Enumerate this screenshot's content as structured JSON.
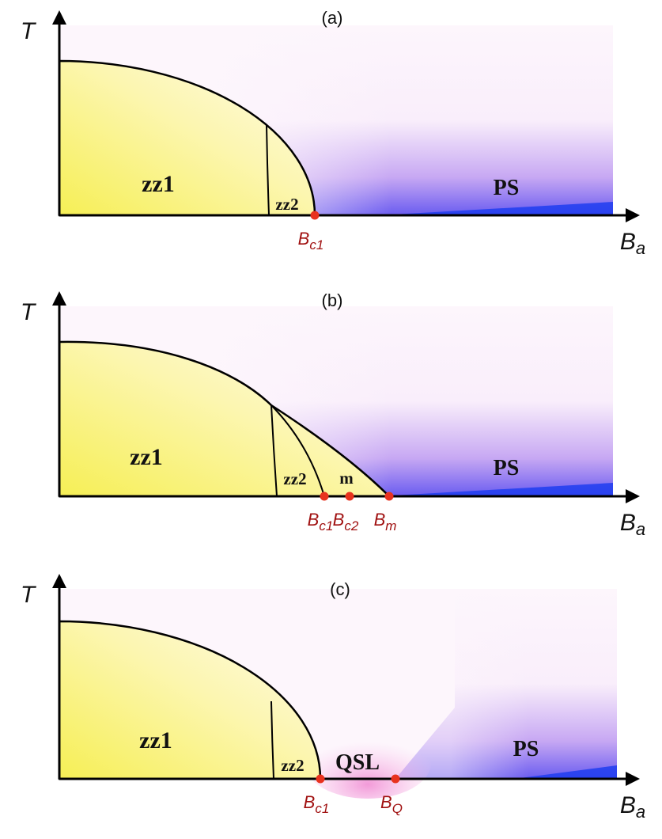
{
  "panels": [
    {
      "label": "(a)",
      "y_axis": "T",
      "x_axis": {
        "main": "B",
        "sub": "a"
      },
      "regions": [
        "zz1",
        "zz2",
        "PS"
      ],
      "points": [
        {
          "main": "B",
          "sub": "c1"
        }
      ]
    },
    {
      "label": "(b)",
      "y_axis": "T",
      "x_axis": {
        "main": "B",
        "sub": "a"
      },
      "regions": [
        "zz1",
        "zz2",
        "m",
        "PS"
      ],
      "points": [
        {
          "main": "B",
          "sub": "c1"
        },
        {
          "main": "B",
          "sub": "c2"
        },
        {
          "main": "B",
          "sub": "m"
        }
      ]
    },
    {
      "label": "(c)",
      "y_axis": "T",
      "x_axis": {
        "main": "B",
        "sub": "a"
      },
      "regions": [
        "zz1",
        "zz2",
        "QSL",
        "PS"
      ],
      "points": [
        {
          "main": "B",
          "sub": "c1"
        },
        {
          "main": "B",
          "sub": "Q"
        }
      ]
    }
  ]
}
